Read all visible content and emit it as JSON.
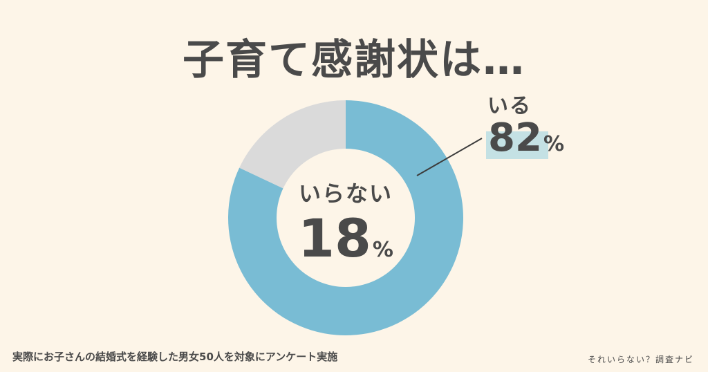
{
  "title": "子育て感謝状は…",
  "chart_data": {
    "type": "pie",
    "categories": [
      "いる",
      "いらない"
    ],
    "values": [
      82,
      18
    ],
    "unit": "%",
    "colors": [
      "#79bcd4",
      "#dadada"
    ],
    "labels": [
      {
        "category": "いる",
        "value_text": "82"
      },
      {
        "category": "いらない",
        "value_text": "18"
      }
    ]
  },
  "percent_sign": "%",
  "footnote": "実際にお子さんの結婚式を経験した男女50人を対象にアンケート実施",
  "brand": "それいらない？調査ナビ"
}
